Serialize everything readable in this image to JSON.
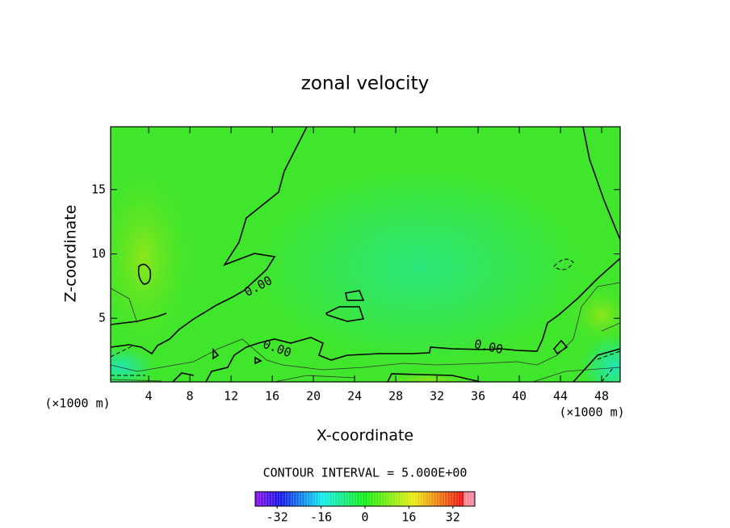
{
  "chart_data": {
    "type": "contour",
    "title": "zonal velocity",
    "xlabel": "X-coordinate",
    "ylabel": "Z-coordinate",
    "x_unit_labels": [
      "(×1000 m)",
      "(×1000 m)"
    ],
    "xlim": [
      0.3,
      49.8
    ],
    "ylim": [
      0.06,
      19.88
    ],
    "xticks": [
      4,
      8,
      12,
      16,
      20,
      24,
      28,
      32,
      36,
      40,
      44,
      48
    ],
    "yticks": [
      5,
      10,
      15
    ],
    "contour_labels": [
      "0.00",
      "0.00",
      "0.00"
    ],
    "annotation": "CONTOUR INTERVAL = 5.000E+00",
    "colorbar": {
      "lim": [
        -40,
        40
      ],
      "ticks": [
        -32,
        -16,
        0,
        16,
        32
      ]
    }
  }
}
